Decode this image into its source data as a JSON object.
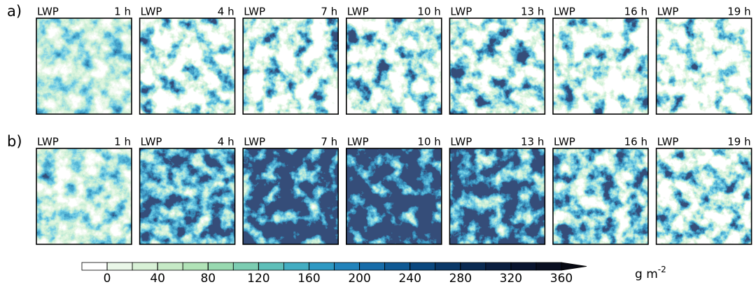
{
  "rows": [
    {
      "label": "a)",
      "panels": [
        {
          "variable": "LWP",
          "time": "1 h"
        },
        {
          "variable": "LWP",
          "time": "4 h"
        },
        {
          "variable": "LWP",
          "time": "7 h"
        },
        {
          "variable": "LWP",
          "time": "10 h"
        },
        {
          "variable": "LWP",
          "time": "13 h"
        },
        {
          "variable": "LWP",
          "time": "16 h"
        },
        {
          "variable": "LWP",
          "time": "19 h"
        }
      ]
    },
    {
      "label": "b)",
      "panels": [
        {
          "variable": "LWP",
          "time": "1 h"
        },
        {
          "variable": "LWP",
          "time": "4 h"
        },
        {
          "variable": "LWP",
          "time": "7 h"
        },
        {
          "variable": "LWP",
          "time": "10 h"
        },
        {
          "variable": "LWP",
          "time": "13 h"
        },
        {
          "variable": "LWP",
          "time": "16 h"
        },
        {
          "variable": "LWP",
          "time": "19 h"
        }
      ]
    }
  ],
  "colorbar": {
    "xlim": [
      -20,
      360
    ],
    "ticks": [
      0,
      40,
      80,
      120,
      160,
      200,
      240,
      280,
      320,
      360
    ],
    "colors": [
      "#ffffff",
      "#eaf7e8",
      "#d8f1d6",
      "#c6eac6",
      "#b1e3b7",
      "#98d9b0",
      "#7ccdb2",
      "#5fbfb9",
      "#43adc2",
      "#2f99c3",
      "#2283bb",
      "#176ca9",
      "#0f5994",
      "#0b487f",
      "#0a3868",
      "#0a2a52",
      "#0a1e40",
      "#0a1530",
      "#0a0f22"
    ],
    "extend_color": "#080a14",
    "unit": "g m",
    "unit_exponent": "-2"
  }
}
